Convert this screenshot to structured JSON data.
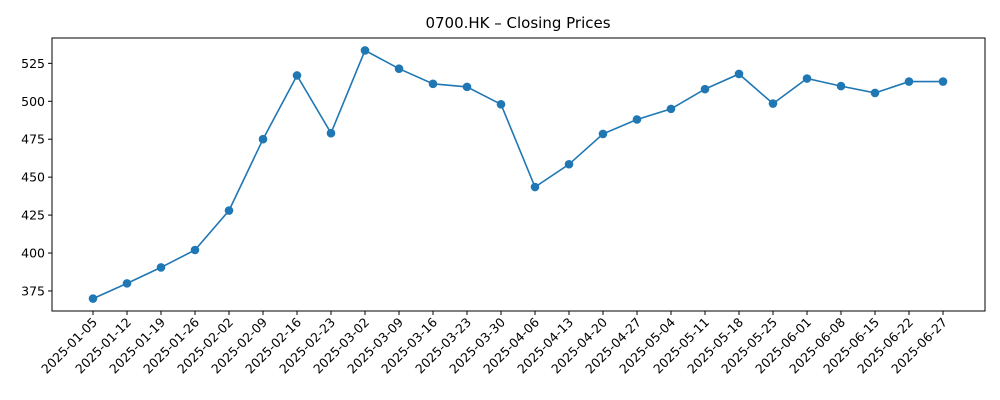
{
  "chart_data": {
    "type": "line",
    "title": "0700.HK – Closing Prices",
    "xlabel": "",
    "ylabel": "",
    "categories": [
      "2025-01-05",
      "2025-01-12",
      "2025-01-19",
      "2025-01-26",
      "2025-02-02",
      "2025-02-09",
      "2025-02-16",
      "2025-02-23",
      "2025-03-02",
      "2025-03-09",
      "2025-03-16",
      "2025-03-23",
      "2025-03-30",
      "2025-04-06",
      "2025-04-13",
      "2025-04-20",
      "2025-04-27",
      "2025-05-04",
      "2025-05-11",
      "2025-05-18",
      "2025-05-25",
      "2025-06-01",
      "2025-06-08",
      "2025-06-15",
      "2025-06-22",
      "2025-06-27"
    ],
    "series": [
      {
        "values": [
          370,
          380,
          390.5,
          402,
          428,
          475,
          517,
          479,
          533.5,
          521.5,
          511.5,
          509.5,
          498,
          443.5,
          458.5,
          478.5,
          488,
          495,
          508,
          518,
          498.5,
          515,
          510,
          505.5,
          513,
          513
        ],
        "color": "#1f77b4",
        "marker": "circle"
      }
    ],
    "yticks": [
      375,
      400,
      425,
      450,
      475,
      500,
      525
    ],
    "ylim": [
      361.8,
      541.7
    ],
    "grid": false,
    "legend": "none"
  }
}
